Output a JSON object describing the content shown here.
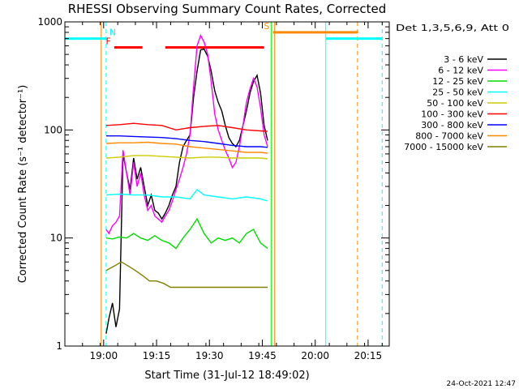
{
  "chart_data": {
    "type": "line",
    "title": "RHESSI Observing Summary Count Rates, Corrected",
    "xlabel": "Start Time (31-Jul-12 18:49:02)",
    "ylabel": "Corrected Count Rate (s⁻¹ detector⁻¹)",
    "yscale": "log",
    "xlim": [
      0,
      92
    ],
    "ylim": [
      1,
      1000
    ],
    "x_unit": "minutes after 18:49:02",
    "x_ticks": [
      {
        "x": 11,
        "label": "19:00"
      },
      {
        "x": 26,
        "label": "19:15"
      },
      {
        "x": 41,
        "label": "19:30"
      },
      {
        "x": 56,
        "label": "19:45"
      },
      {
        "x": 71,
        "label": "20:00"
      },
      {
        "x": 86,
        "label": "20:15"
      }
    ],
    "y_ticks": [
      {
        "y": 1,
        "label": "1"
      },
      {
        "y": 10,
        "label": "10"
      },
      {
        "y": 100,
        "label": "100"
      },
      {
        "y": 1000,
        "label": "1000"
      }
    ],
    "legend_title": "Det 1,3,5,6,9, Att 0",
    "legend_position": "right",
    "grid": false,
    "series": [
      {
        "name": "3 - 6 keV",
        "color": "#000000",
        "points": [
          [
            11.7,
            1.3
          ],
          [
            12.5,
            1.8
          ],
          [
            13.5,
            2.5
          ],
          [
            14.5,
            1.5
          ],
          [
            15.5,
            2.2
          ],
          [
            16.5,
            60
          ],
          [
            17.5,
            40
          ],
          [
            18.5,
            28
          ],
          [
            19.5,
            55
          ],
          [
            20.5,
            35
          ],
          [
            21.5,
            45
          ],
          [
            22.5,
            30
          ],
          [
            23.5,
            20
          ],
          [
            24.5,
            25
          ],
          [
            25.5,
            18
          ],
          [
            26.5,
            17
          ],
          [
            27.5,
            15
          ],
          [
            28.5,
            17
          ],
          [
            29.5,
            20
          ],
          [
            30.5,
            25
          ],
          [
            31.5,
            30
          ],
          [
            32.5,
            50
          ],
          [
            33.5,
            70
          ],
          [
            34.5,
            80
          ],
          [
            35.5,
            90
          ],
          [
            36.5,
            200
          ],
          [
            37.5,
            350
          ],
          [
            38.5,
            550
          ],
          [
            39.5,
            560
          ],
          [
            40.5,
            480
          ],
          [
            41.5,
            350
          ],
          [
            42.5,
            230
          ],
          [
            43.5,
            180
          ],
          [
            44.5,
            150
          ],
          [
            45.5,
            110
          ],
          [
            46.5,
            85
          ],
          [
            47.5,
            75
          ],
          [
            48.5,
            70
          ],
          [
            49.5,
            80
          ],
          [
            50.5,
            110
          ],
          [
            51.5,
            150
          ],
          [
            52.5,
            220
          ],
          [
            53.5,
            280
          ],
          [
            54.5,
            320
          ],
          [
            55.5,
            220
          ],
          [
            56.5,
            110
          ],
          [
            57.5,
            80
          ]
        ]
      },
      {
        "name": "6 - 12 keV",
        "color": "#ff00ff",
        "points": [
          [
            11.7,
            12
          ],
          [
            12.5,
            11
          ],
          [
            13.5,
            13
          ],
          [
            14.5,
            14
          ],
          [
            15.5,
            16
          ],
          [
            16.5,
            65
          ],
          [
            17.5,
            40
          ],
          [
            18.5,
            25
          ],
          [
            19.5,
            50
          ],
          [
            20.5,
            30
          ],
          [
            21.5,
            40
          ],
          [
            22.5,
            25
          ],
          [
            23.5,
            18
          ],
          [
            24.5,
            20
          ],
          [
            25.5,
            16
          ],
          [
            26.5,
            15
          ],
          [
            27.5,
            14
          ],
          [
            28.5,
            16
          ],
          [
            29.5,
            18
          ],
          [
            30.5,
            22
          ],
          [
            31.5,
            28
          ],
          [
            32.5,
            35
          ],
          [
            33.5,
            45
          ],
          [
            34.5,
            60
          ],
          [
            35.5,
            90
          ],
          [
            36.5,
            250
          ],
          [
            37.5,
            600
          ],
          [
            38.5,
            750
          ],
          [
            39.5,
            650
          ],
          [
            40.5,
            500
          ],
          [
            41.5,
            280
          ],
          [
            42.5,
            140
          ],
          [
            43.5,
            100
          ],
          [
            44.5,
            80
          ],
          [
            45.5,
            65
          ],
          [
            46.5,
            55
          ],
          [
            47.5,
            45
          ],
          [
            48.5,
            50
          ],
          [
            49.5,
            70
          ],
          [
            50.5,
            110
          ],
          [
            51.5,
            180
          ],
          [
            52.5,
            240
          ],
          [
            53.5,
            300
          ],
          [
            54.5,
            250
          ],
          [
            55.5,
            160
          ],
          [
            56.5,
            90
          ],
          [
            57.5,
            70
          ]
        ]
      },
      {
        "name": "12 - 25 keV",
        "color": "#00dd00",
        "points": [
          [
            11.7,
            10
          ],
          [
            13.5,
            9.8
          ],
          [
            15.5,
            10.2
          ],
          [
            17.5,
            10
          ],
          [
            19.5,
            11
          ],
          [
            21.5,
            10
          ],
          [
            23.5,
            9.5
          ],
          [
            25.5,
            10.5
          ],
          [
            27.5,
            9.5
          ],
          [
            29.5,
            9
          ],
          [
            31.5,
            8
          ],
          [
            33.5,
            10
          ],
          [
            35.5,
            12
          ],
          [
            37.5,
            15
          ],
          [
            39.5,
            11
          ],
          [
            41.5,
            9
          ],
          [
            43.5,
            10
          ],
          [
            45.5,
            9.5
          ],
          [
            47.5,
            10
          ],
          [
            49.5,
            9
          ],
          [
            51.5,
            11
          ],
          [
            53.5,
            12
          ],
          [
            55.5,
            9
          ],
          [
            57.5,
            8
          ]
        ]
      },
      {
        "name": "25 - 50 keV",
        "color": "#00ffff",
        "points": [
          [
            11.7,
            25
          ],
          [
            15.5,
            25.5
          ],
          [
            19.5,
            25
          ],
          [
            23.5,
            25
          ],
          [
            27.5,
            24
          ],
          [
            31.5,
            24
          ],
          [
            35.5,
            23
          ],
          [
            37.5,
            28
          ],
          [
            39.5,
            25
          ],
          [
            43.5,
            24
          ],
          [
            47.5,
            23
          ],
          [
            51.5,
            24
          ],
          [
            55.5,
            23
          ],
          [
            57.5,
            22
          ]
        ]
      },
      {
        "name": "50 - 100 keV",
        "color": "#cccc00",
        "points": [
          [
            11.7,
            55
          ],
          [
            15.5,
            56
          ],
          [
            19.5,
            58
          ],
          [
            23.5,
            58
          ],
          [
            27.5,
            57
          ],
          [
            31.5,
            56
          ],
          [
            35.5,
            55
          ],
          [
            39.5,
            56
          ],
          [
            43.5,
            56
          ],
          [
            47.5,
            55
          ],
          [
            51.5,
            55
          ],
          [
            55.5,
            55
          ],
          [
            57.5,
            54
          ]
        ]
      },
      {
        "name": "100 - 300 keV",
        "color": "#ff0000",
        "points": [
          [
            11.7,
            110
          ],
          [
            15.5,
            112
          ],
          [
            19.5,
            115
          ],
          [
            23.5,
            112
          ],
          [
            27.5,
            110
          ],
          [
            31.5,
            100
          ],
          [
            35.5,
            105
          ],
          [
            39.5,
            108
          ],
          [
            43.5,
            110
          ],
          [
            47.5,
            105
          ],
          [
            51.5,
            100
          ],
          [
            55.5,
            98
          ],
          [
            57.5,
            97
          ]
        ]
      },
      {
        "name": "300 - 800 keV",
        "color": "#0000ff",
        "points": [
          [
            11.7,
            88
          ],
          [
            15.5,
            88
          ],
          [
            19.5,
            87
          ],
          [
            23.5,
            86
          ],
          [
            27.5,
            85
          ],
          [
            31.5,
            83
          ],
          [
            35.5,
            80
          ],
          [
            39.5,
            78
          ],
          [
            43.5,
            75
          ],
          [
            47.5,
            72
          ],
          [
            51.5,
            70
          ],
          [
            55.5,
            70
          ],
          [
            57.5,
            69
          ]
        ]
      },
      {
        "name": "800 - 7000 keV",
        "color": "#ff8800",
        "points": [
          [
            11.7,
            75
          ],
          [
            15.5,
            76
          ],
          [
            19.5,
            76
          ],
          [
            23.5,
            77
          ],
          [
            27.5,
            75
          ],
          [
            31.5,
            74
          ],
          [
            35.5,
            70
          ],
          [
            39.5,
            68
          ],
          [
            43.5,
            66
          ],
          [
            47.5,
            64
          ],
          [
            51.5,
            62
          ],
          [
            55.5,
            62
          ],
          [
            57.5,
            61
          ]
        ]
      },
      {
        "name": "7000 - 15000 keV",
        "color": "#808000",
        "points": [
          [
            11.7,
            5
          ],
          [
            14,
            5.5
          ],
          [
            16,
            6
          ],
          [
            18,
            5.5
          ],
          [
            20,
            5
          ],
          [
            22,
            4.5
          ],
          [
            24,
            4
          ],
          [
            26,
            4
          ],
          [
            28,
            3.8
          ],
          [
            30,
            3.5
          ],
          [
            32,
            3.5
          ],
          [
            36,
            3.5
          ],
          [
            40,
            3.5
          ],
          [
            44,
            3.5
          ],
          [
            48,
            3.5
          ],
          [
            52,
            3.5
          ],
          [
            56,
            3.5
          ],
          [
            57.5,
            3.5
          ]
        ]
      }
    ],
    "annotations": [
      {
        "label": "N",
        "color": "#00ffff",
        "x_start": 0,
        "x_end": 11.7,
        "y": 700,
        "marker_x": 11.7
      },
      {
        "label": "F",
        "color": "#ff0000",
        "x_start": 14,
        "x_end": 22,
        "y": 580
      },
      {
        "label": "",
        "color": "#ff0000",
        "x_start": 28.5,
        "x_end": 56.5,
        "y": 580
      },
      {
        "label": "S",
        "color": "#ff8800",
        "x_start": 59,
        "x_end": 83,
        "y": 800,
        "marker_x": 83
      },
      {
        "label": "",
        "color": "#00ffff",
        "x_start": 74,
        "x_end": 90,
        "y": 700,
        "marker_x": 90
      }
    ],
    "vertical_lines": [
      {
        "x": 0,
        "color": "#00ffff",
        "style": "solid"
      },
      {
        "x": 10.3,
        "color": "#ff8800",
        "style": "solid"
      },
      {
        "x": 58.5,
        "color": "#00ff00",
        "style": "solid"
      },
      {
        "x": 59.5,
        "color": "#ff8800",
        "style": "solid"
      },
      {
        "x": 74,
        "color": "#00ffff",
        "style": "solid"
      }
    ]
  },
  "timestamp": "24-Oct-2021 12:47"
}
